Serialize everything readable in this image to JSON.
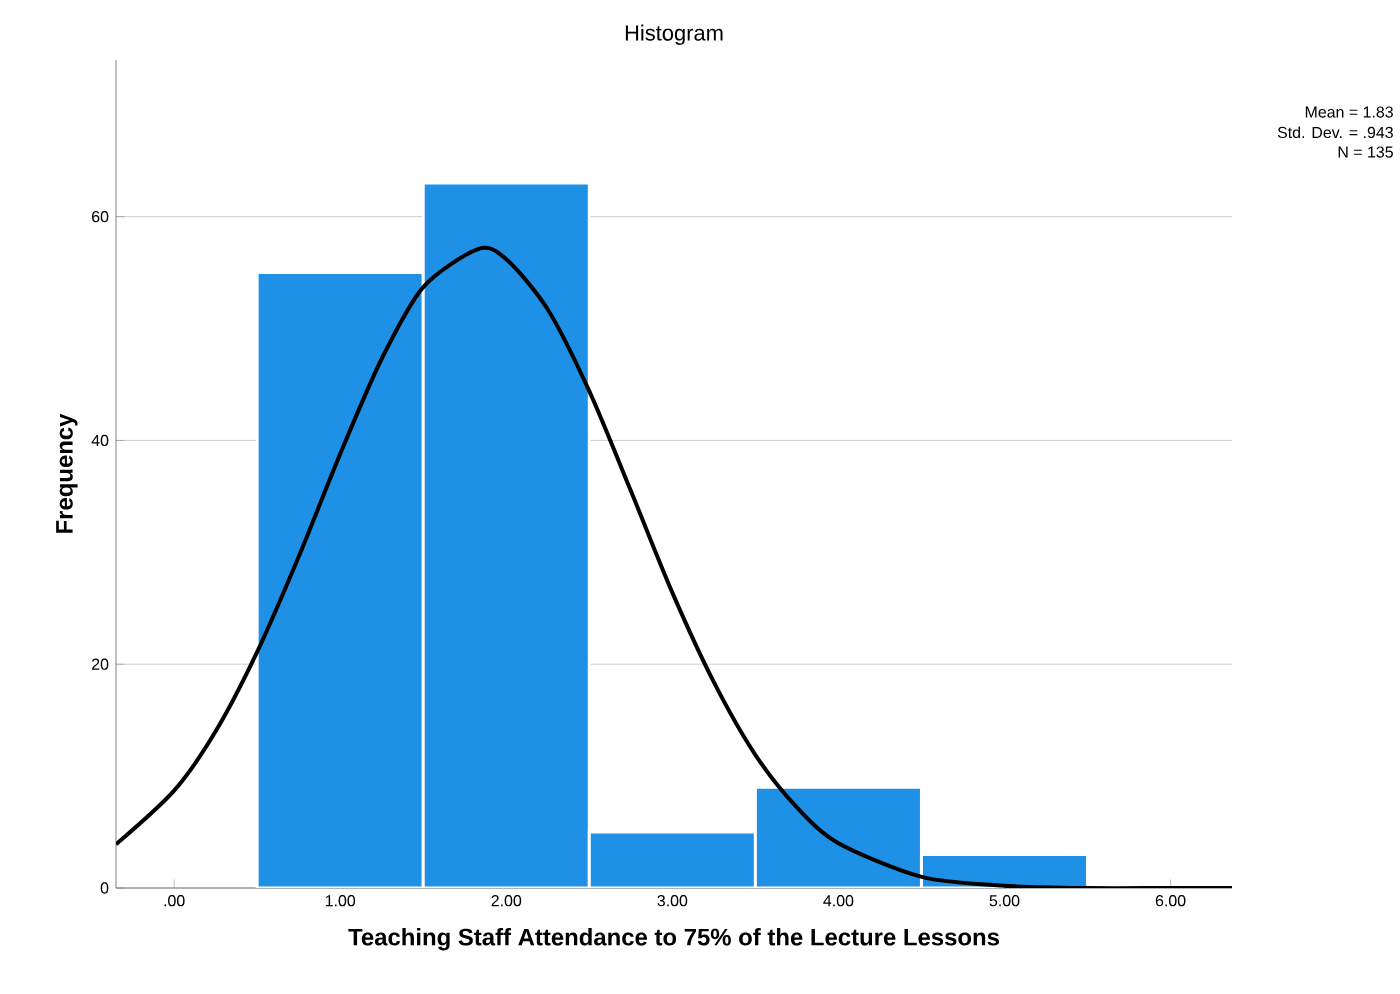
{
  "chart_data": {
    "type": "histogram",
    "title": "Histogram",
    "xlabel": "Teaching Staff Attendance to 75% of the Lecture Lessons",
    "ylabel": "Frequency",
    "bins": [
      0.5,
      1.5,
      2.5,
      3.5,
      4.5,
      5.5
    ],
    "values": [
      55,
      63,
      5,
      9,
      3
    ],
    "color": "#1e90e6",
    "series": [
      {
        "type": "line",
        "color": "#000000",
        "x": [
          -0.35,
          0,
          0.25,
          0.5,
          0.75,
          1.0,
          1.25,
          1.5,
          1.83,
          2.0,
          2.25,
          2.5,
          2.75,
          3.0,
          3.25,
          3.5,
          3.75,
          4.0,
          4.5,
          5.0,
          5.5,
          6.0,
          6.37
        ],
        "values": [
          3.9,
          8.7,
          14.0,
          21.1,
          29.6,
          38.8,
          47.3,
          53.7,
          57.1,
          56.2,
          51.7,
          44.4,
          35.5,
          26.4,
          18.4,
          11.9,
          7.2,
          4.0,
          1.0,
          0.2,
          0,
          0,
          0
        ]
      }
    ],
    "xlim": [
      -0.35,
      6.37
    ],
    "ylim": [
      0,
      74
    ],
    "xticks": [
      {
        "value": 0,
        "label": ".00"
      },
      {
        "value": 1,
        "label": "1.00"
      },
      {
        "value": 2,
        "label": "2.00"
      },
      {
        "value": 3,
        "label": "3.00"
      },
      {
        "value": 4,
        "label": "4.00"
      },
      {
        "value": 5,
        "label": "5.00"
      },
      {
        "value": 6,
        "label": "6.00"
      }
    ],
    "yticks": [
      0,
      20,
      40,
      60
    ],
    "grid": "y",
    "annotations": [
      "Mean = 1.83",
      "Std. Dev. = .943",
      "N = 135"
    ]
  }
}
